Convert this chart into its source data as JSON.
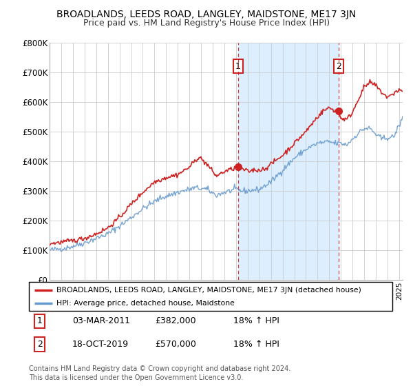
{
  "title": "BROADLANDS, LEEDS ROAD, LANGLEY, MAIDSTONE, ME17 3JN",
  "subtitle": "Price paid vs. HM Land Registry's House Price Index (HPI)",
  "ylabel_ticks": [
    "£0",
    "£100K",
    "£200K",
    "£300K",
    "£400K",
    "£500K",
    "£600K",
    "£700K",
    "£800K"
  ],
  "ylim": [
    0,
    800000
  ],
  "xlim_start": 1995.0,
  "xlim_end": 2025.3,
  "sale1_date": 2011.17,
  "sale1_price": 382000,
  "sale1_label": "1",
  "sale2_date": 2019.79,
  "sale2_price": 570000,
  "sale2_label": "2",
  "red_line_color": "#cc2222",
  "blue_line_color": "#6699cc",
  "vline_color": "#cc2222",
  "shade_color": "#ddeeff",
  "grid_color": "#cccccc",
  "background_color": "#ffffff",
  "legend_label_red": "BROADLANDS, LEEDS ROAD, LANGLEY, MAIDSTONE, ME17 3JN (detached house)",
  "legend_label_blue": "HPI: Average price, detached house, Maidstone",
  "footnote": "Contains HM Land Registry data © Crown copyright and database right 2024.\nThis data is licensed under the Open Government Licence v3.0.",
  "table_rows": [
    {
      "num": "1",
      "date": "03-MAR-2011",
      "price": "£382,000",
      "hpi": "18% ↑ HPI"
    },
    {
      "num": "2",
      "date": "18-OCT-2019",
      "price": "£570,000",
      "hpi": "18% ↑ HPI"
    }
  ]
}
